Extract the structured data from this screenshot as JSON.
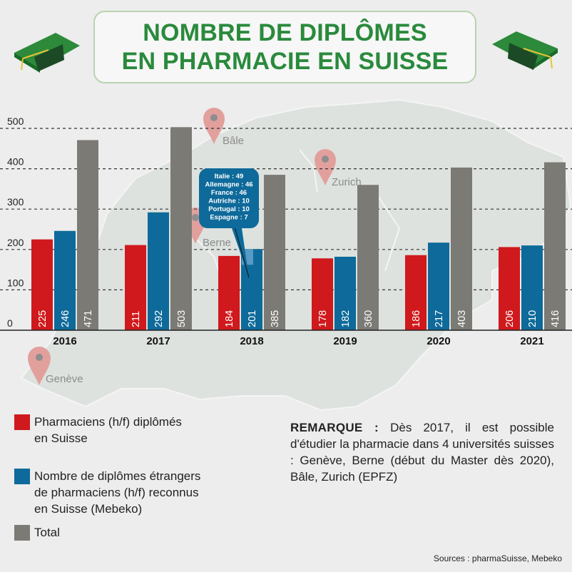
{
  "title": {
    "line1": "NOMBRE DE DIPLÔMES",
    "line2": "EN PHARMACIE EN SUISSE"
  },
  "icons": {
    "cap": "graduation-cap-icon",
    "pin": "map-pin-icon"
  },
  "map_cities": [
    "Bâle",
    "Zurich",
    "Berne",
    "Genève"
  ],
  "chart_data": {
    "type": "bar",
    "categories": [
      "2016",
      "2017",
      "2018",
      "2019",
      "2020",
      "2021"
    ],
    "series": [
      {
        "name": "Pharmaciens (h/f) diplômés en Suisse",
        "values": [
          225,
          211,
          184,
          178,
          186,
          206
        ],
        "color": "#d0191c"
      },
      {
        "name": "Nombre de diplômes étrangers de pharmaciens (h/f) reconnus en Suisse (Mebeko)",
        "values": [
          246,
          292,
          201,
          182,
          217,
          210
        ],
        "color": "#0e6a9a"
      },
      {
        "name": "Total",
        "values": [
          471,
          503,
          385,
          360,
          403,
          416
        ],
        "color": "#7c7a74"
      }
    ],
    "ylim": [
      0,
      500
    ],
    "yticks": [
      0,
      100,
      200,
      300,
      400,
      500
    ],
    "grid": "dashed horizontal",
    "xlabel": "",
    "ylabel": "",
    "callout": {
      "category": "2018",
      "lines": [
        "Italie : 49",
        "Allemagne : 46",
        "France : 46",
        "Autriche : 10",
        "Portugal : 10",
        "Espagne : 7"
      ],
      "color": "#0e6a9a"
    }
  },
  "legend": {
    "items": [
      {
        "lines": [
          "Pharmaciens (h/f) diplômés",
          "en Suisse"
        ],
        "color": "#d0191c"
      },
      {
        "lines": [
          "Nombre de diplômes étrangers",
          "de pharmaciens (h/f) reconnus",
          "en Suisse (Mebeko)"
        ],
        "color": "#0e6a9a"
      },
      {
        "lines": [
          "Total"
        ],
        "color": "#7c7a74"
      }
    ]
  },
  "note": {
    "heading": "REMARQUE :",
    "text": "Dès 2017, il est possible d'étudier la pharmacie dans 4 universités suisses : Genève, Berne (début du Master dès 2020), Bâle, Zurich (EPFZ)"
  },
  "sources": "Sources : pharmaSuisse, Mebeko"
}
